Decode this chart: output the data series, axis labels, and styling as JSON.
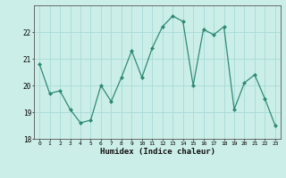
{
  "x": [
    0,
    1,
    2,
    3,
    4,
    5,
    6,
    7,
    8,
    9,
    10,
    11,
    12,
    13,
    14,
    15,
    16,
    17,
    18,
    19,
    20,
    21,
    22,
    23
  ],
  "y": [
    20.8,
    19.7,
    19.8,
    19.1,
    18.6,
    18.7,
    20.0,
    19.4,
    20.3,
    21.3,
    20.3,
    21.4,
    22.2,
    22.6,
    22.4,
    20.0,
    22.1,
    21.9,
    22.2,
    19.1,
    20.1,
    20.4,
    19.5,
    18.5
  ],
  "line_color": "#2e8b74",
  "marker": "D",
  "marker_size": 2,
  "bg_color": "#cceee8",
  "grid_color": "#aaddda",
  "xlabel": "Humidex (Indice chaleur)",
  "ylim": [
    18,
    23
  ],
  "xlim": [
    -0.5,
    23.5
  ],
  "yticks": [
    18,
    19,
    20,
    21,
    22
  ],
  "xticks": [
    0,
    1,
    2,
    3,
    4,
    5,
    6,
    7,
    8,
    9,
    10,
    11,
    12,
    13,
    14,
    15,
    16,
    17,
    18,
    19,
    20,
    21,
    22,
    23
  ]
}
